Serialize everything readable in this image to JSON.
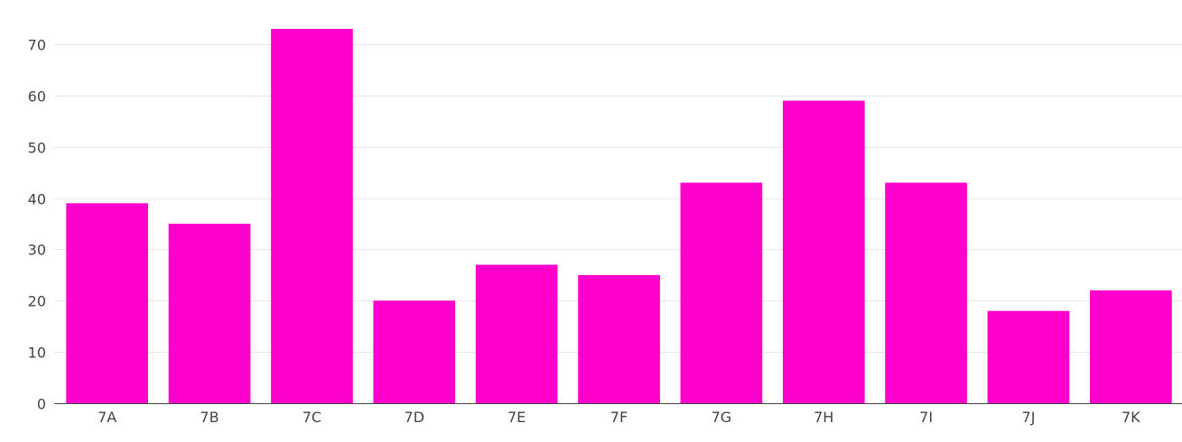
{
  "chart_data": {
    "type": "bar",
    "categories": [
      "7A",
      "7B",
      "7C",
      "7D",
      "7E",
      "7F",
      "7G",
      "7H",
      "7I",
      "7J",
      "7K"
    ],
    "values": [
      39,
      35,
      73,
      20,
      27,
      25,
      43,
      59,
      43,
      18,
      22
    ],
    "title": "",
    "xlabel": "",
    "ylabel": "",
    "ylim": [
      0,
      73
    ],
    "yticks": [
      0,
      10,
      20,
      30,
      40,
      50,
      60,
      70
    ],
    "grid": true,
    "legend": "none",
    "bar_color": "#ff00cc"
  }
}
